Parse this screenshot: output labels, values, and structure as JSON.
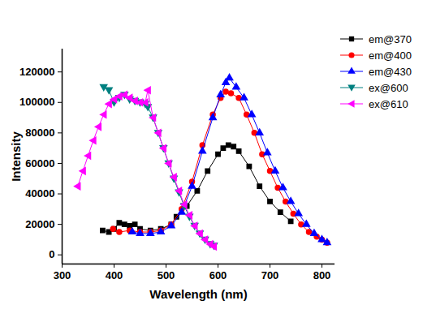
{
  "chart_data": {
    "type": "line",
    "x_label": "Wavelength (nm)",
    "y_label": "Intensity",
    "xlim": [
      300,
      825
    ],
    "ylim": [
      -6000,
      135000
    ],
    "xticks": [
      300,
      400,
      500,
      600,
      700,
      800
    ],
    "yticks": [
      0,
      20000,
      40000,
      60000,
      80000,
      100000,
      120000
    ],
    "grid": false,
    "legend": "top-right",
    "series": [
      {
        "name": "em@370",
        "color": "#000000",
        "marker": "square",
        "x": [
          378,
          390,
          400,
          410,
          420,
          430,
          440,
          450,
          470,
          490,
          510,
          520,
          540,
          560,
          580,
          600,
          610,
          620,
          630,
          640,
          660,
          680,
          700,
          720,
          740
        ],
        "values": [
          16000,
          15000,
          17000,
          21000,
          20000,
          19000,
          20000,
          17000,
          16000,
          17000,
          20000,
          25000,
          32000,
          42000,
          55000,
          66000,
          70000,
          72000,
          71000,
          68000,
          58000,
          45000,
          35000,
          28000,
          22000
        ]
      },
      {
        "name": "em@400",
        "color": "#ff0000",
        "marker": "circle",
        "x": [
          398,
          410,
          430,
          450,
          470,
          490,
          510,
          530,
          550,
          570,
          590,
          605,
          615,
          625,
          640,
          655,
          670,
          685,
          700,
          715,
          730,
          745,
          760,
          775,
          790,
          800,
          810
        ],
        "values": [
          17000,
          15000,
          16000,
          15000,
          15000,
          16000,
          20000,
          30000,
          48000,
          72000,
          92000,
          103000,
          107000,
          106000,
          103000,
          92000,
          80000,
          66000,
          55000,
          44000,
          35000,
          27000,
          20000,
          15000,
          12000,
          10000,
          8000
        ]
      },
      {
        "name": "em@430",
        "color": "#0000ff",
        "marker": "triangle-up",
        "x": [
          435,
          450,
          470,
          490,
          510,
          530,
          550,
          570,
          590,
          605,
          615,
          622,
          635,
          650,
          665,
          680,
          695,
          710,
          725,
          740,
          755,
          770,
          785,
          800,
          810
        ],
        "values": [
          15000,
          14000,
          14000,
          15000,
          19000,
          28000,
          45000,
          68000,
          90000,
          105000,
          113000,
          116000,
          110000,
          103000,
          92000,
          80000,
          67000,
          55000,
          44000,
          35000,
          27000,
          20000,
          14000,
          10000,
          8000
        ]
      },
      {
        "name": "ex@600",
        "color": "#008080",
        "marker": "triangle-down",
        "x": [
          380,
          390,
          400,
          410,
          420,
          430,
          440,
          450,
          460,
          465,
          475,
          485,
          495,
          505,
          515,
          525,
          535,
          545,
          555,
          565,
          575,
          585,
          592
        ],
        "values": [
          110000,
          108000,
          100000,
          103000,
          105000,
          102000,
          101000,
          100000,
          99000,
          97000,
          90000,
          80000,
          70000,
          60000,
          50000,
          41000,
          32000,
          25000,
          19000,
          14000,
          10000,
          7000,
          6000
        ]
      },
      {
        "name": "ex@610",
        "color": "#ff00ff",
        "marker": "triangle-left",
        "x": [
          330,
          340,
          350,
          360,
          370,
          380,
          390,
          400,
          410,
          420,
          430,
          440,
          450,
          460,
          465,
          475,
          485,
          495,
          505,
          515,
          525,
          535,
          545,
          555,
          565,
          575,
          585,
          592
        ],
        "values": [
          45000,
          55000,
          65000,
          75000,
          84000,
          92000,
          99000,
          102000,
          104000,
          105000,
          103000,
          101000,
          100000,
          100000,
          108000,
          90000,
          80000,
          70000,
          60000,
          51000,
          42000,
          33000,
          26000,
          19000,
          14000,
          10000,
          7000,
          5500
        ]
      }
    ]
  }
}
